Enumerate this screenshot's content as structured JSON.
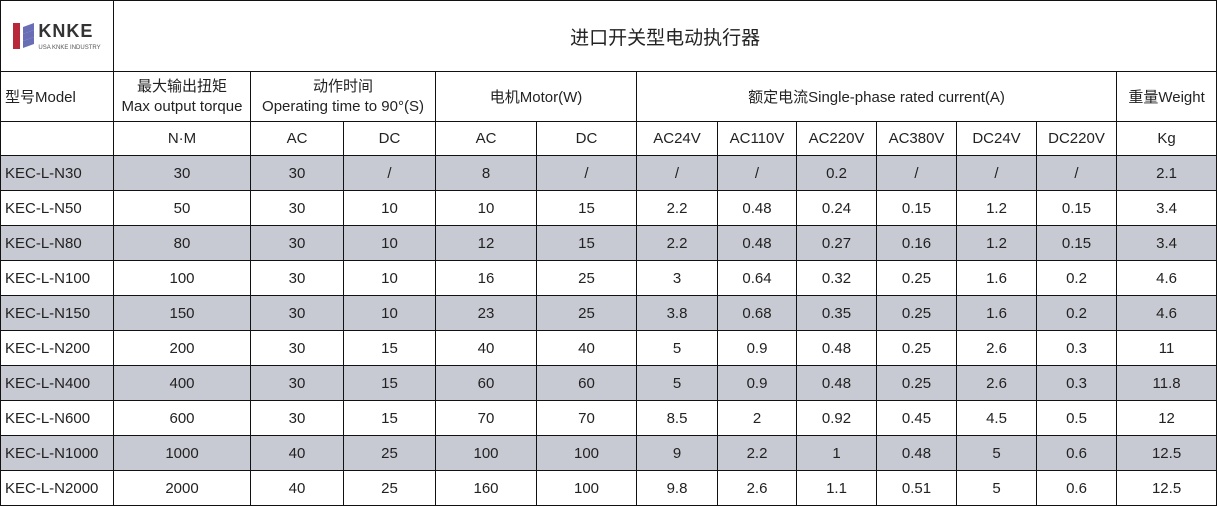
{
  "logo": {
    "name": "KNKE",
    "tagline": "USA KNKE INDUSTRY"
  },
  "title": "进口开关型电动执行器",
  "headers": {
    "model": "型号Model",
    "torque_cn": "最大输出扭矩",
    "torque_en": "Max output torque",
    "time_cn": "动作时间",
    "time_en": "Operating time to 90°(S)",
    "motor": "电机Motor(W)",
    "current": "额定电流Single-phase rated current(A)",
    "weight": "重量Weight"
  },
  "subheaders": [
    "",
    "N·M",
    "AC",
    "DC",
    "AC",
    "DC",
    "AC24V",
    "AC110V",
    "AC220V",
    "AC380V",
    "DC24V",
    "DC220V",
    "Kg"
  ],
  "rows": [
    [
      "KEC-L-N30",
      "30",
      "30",
      "/",
      "8",
      "/",
      "/",
      "/",
      "0.2",
      "/",
      "/",
      "/",
      "2.1"
    ],
    [
      "KEC-L-N50",
      "50",
      "30",
      "10",
      "10",
      "15",
      "2.2",
      "0.48",
      "0.24",
      "0.15",
      "1.2",
      "0.15",
      "3.4"
    ],
    [
      "KEC-L-N80",
      "80",
      "30",
      "10",
      "12",
      "15",
      "2.2",
      "0.48",
      "0.27",
      "0.16",
      "1.2",
      "0.15",
      "3.4"
    ],
    [
      "KEC-L-N100",
      "100",
      "30",
      "10",
      "16",
      "25",
      "3",
      "0.64",
      "0.32",
      "0.25",
      "1.6",
      "0.2",
      "4.6"
    ],
    [
      "KEC-L-N150",
      "150",
      "30",
      "10",
      "23",
      "25",
      "3.8",
      "0.68",
      "0.35",
      "0.25",
      "1.6",
      "0.2",
      "4.6"
    ],
    [
      "KEC-L-N200",
      "200",
      "30",
      "15",
      "40",
      "40",
      "5",
      "0.9",
      "0.48",
      "0.25",
      "2.6",
      "0.3",
      "11"
    ],
    [
      "KEC-L-N400",
      "400",
      "30",
      "15",
      "60",
      "60",
      "5",
      "0.9",
      "0.48",
      "0.25",
      "2.6",
      "0.3",
      "11.8"
    ],
    [
      "KEC-L-N600",
      "600",
      "30",
      "15",
      "70",
      "70",
      "8.5",
      "2",
      "0.92",
      "0.45",
      "4.5",
      "0.5",
      "12"
    ],
    [
      "KEC-L-N1000",
      "1000",
      "40",
      "25",
      "100",
      "100",
      "9",
      "2.2",
      "1",
      "0.48",
      "5",
      "0.6",
      "12.5"
    ],
    [
      "KEC-L-N2000",
      "2000",
      "40",
      "25",
      "160",
      "100",
      "9.8",
      "2.6",
      "1.1",
      "0.51",
      "5",
      "0.6",
      "12.5"
    ]
  ],
  "colors": {
    "shaded_row": "#c8cad3",
    "logo_red": "#b8283a",
    "logo_blue": "#6a6fb5"
  }
}
